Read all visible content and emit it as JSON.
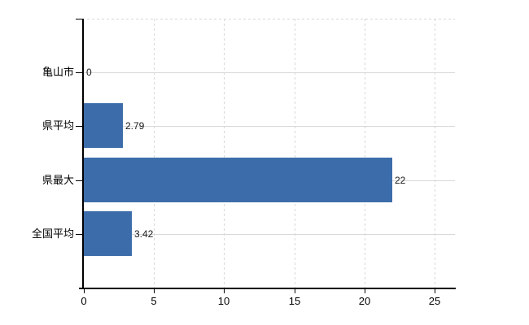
{
  "chart_data": {
    "type": "bar",
    "orientation": "horizontal",
    "title": "",
    "xlabel": "",
    "ylabel": "",
    "categories": [
      "亀山市",
      "県平均",
      "県最大",
      "全国平均"
    ],
    "values": [
      0,
      2.79,
      22,
      3.42
    ],
    "value_labels": [
      "0",
      "2.79",
      "22",
      "3.42"
    ],
    "x_ticks": [
      0,
      5,
      10,
      15,
      20,
      25
    ],
    "x_tick_labels": [
      "0",
      "5",
      "10",
      "15",
      "20",
      "25"
    ],
    "xlim": [
      0,
      26.4
    ],
    "grid": true,
    "legend_position": "none",
    "bar_color": "#3c6daa",
    "gridline_color": "#d8d8d8",
    "axis_color": "#000000",
    "text_color": "#000000",
    "background_color": "#ffffff"
  }
}
